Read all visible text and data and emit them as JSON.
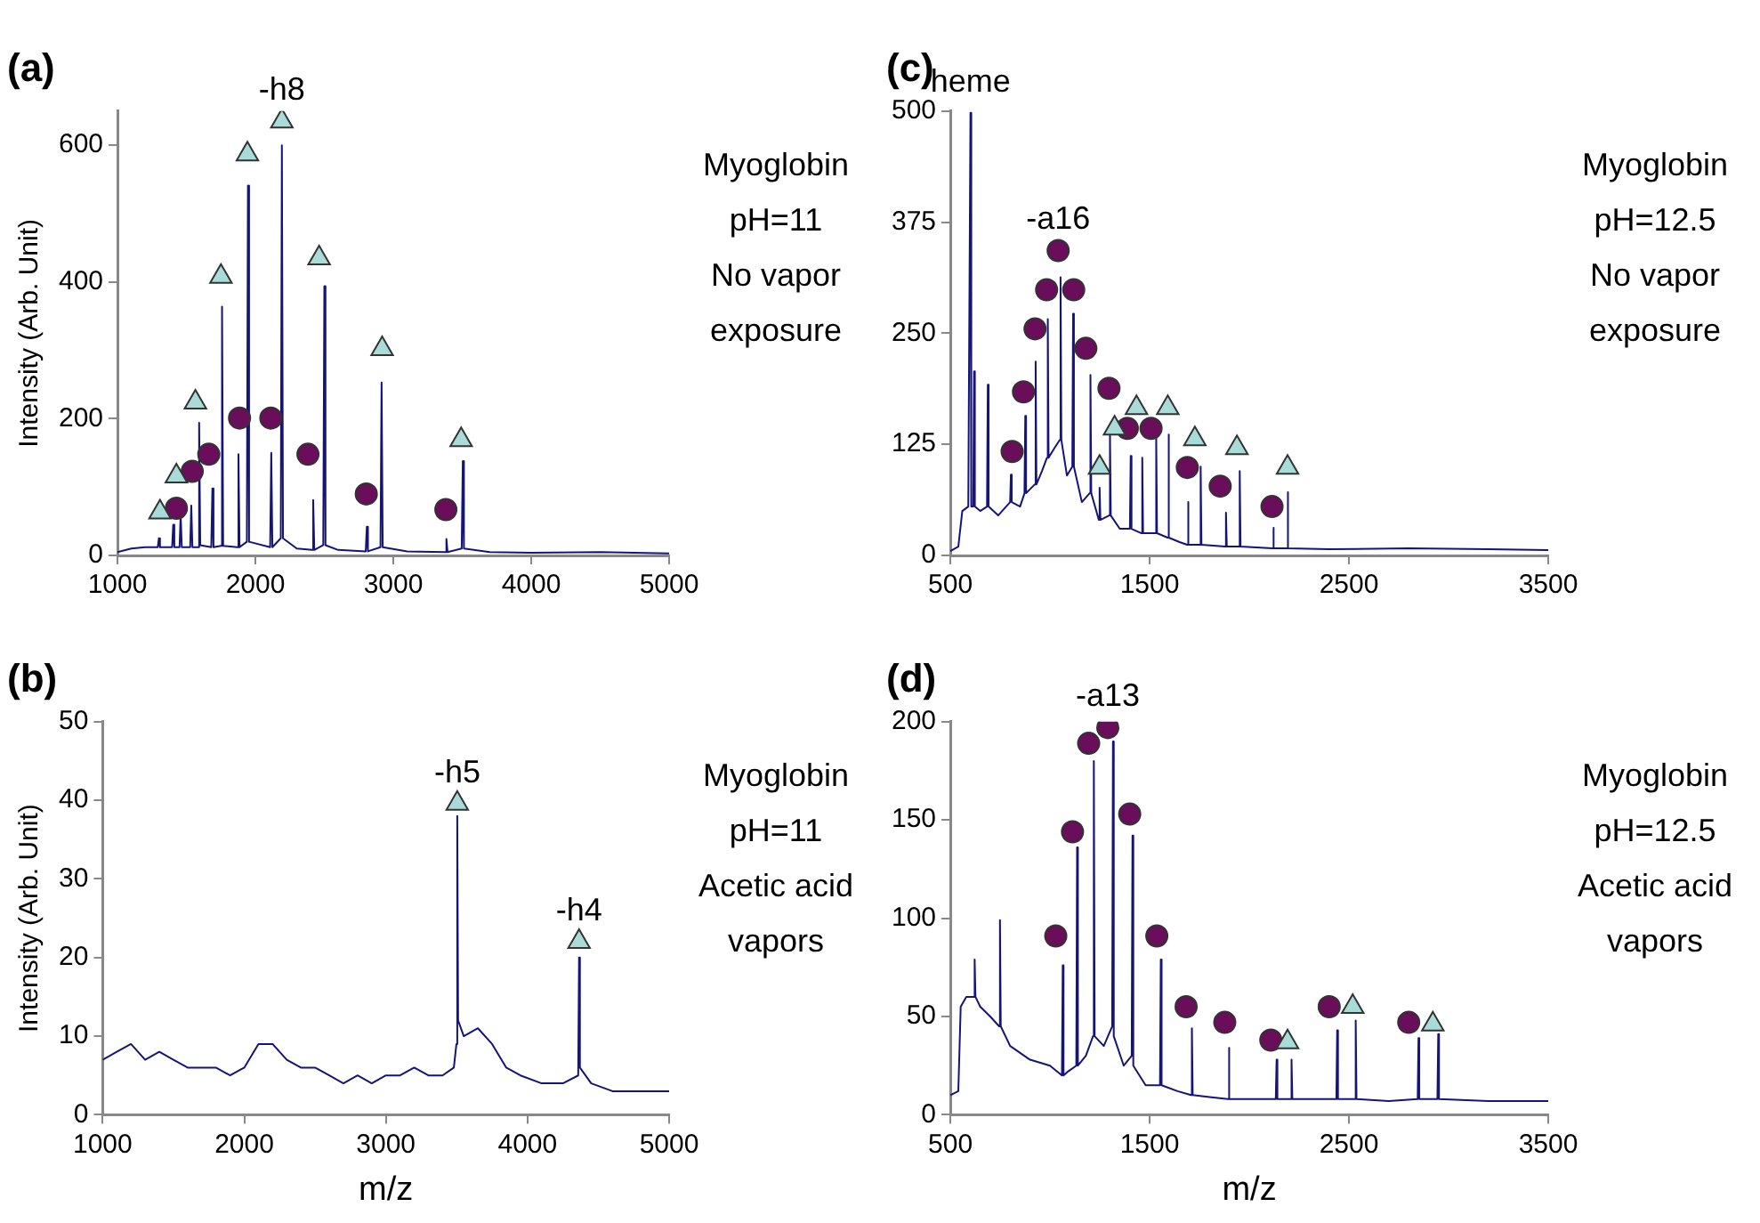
{
  "chart_data": [
    {
      "type": "line",
      "title": "(a)",
      "ylabel": "Intensity (Arb. Unit)",
      "xlim": [
        1000,
        5000
      ],
      "xticks": [
        1000,
        2000,
        3000,
        4000,
        5000
      ],
      "ylim": [
        0,
        650
      ],
      "yticks": [
        0,
        200,
        400,
        600
      ],
      "grid": false,
      "legend": false,
      "annotations": [
        "Myoglobin",
        "pH=11",
        "No vapor",
        "exposure",
        {
          "text": "-h8",
          "x": 2192,
          "y": 635
        }
      ],
      "series": [
        {
          "type": "line",
          "color": "#14147a",
          "marker": "none",
          "x": [
            1000,
            1100,
            1200,
            1292,
            1300,
            1308,
            1396,
            1404,
            1412,
            1450,
            1458,
            1466,
            1527,
            1535,
            1543,
            1584,
            1592,
            1600,
            1680,
            1688,
            1696,
            1750,
            1758,
            1766,
            1869,
            1877,
            1885,
            1938,
            1946,
            1954,
            2107,
            2115,
            2123,
            2184,
            2192,
            2200,
            2300,
            2411,
            2419,
            2427,
            2492,
            2500,
            2508,
            2600,
            2800,
            2808,
            2816,
            2907,
            2915,
            2923,
            3100,
            3377,
            3385,
            3393,
            3496,
            3504,
            3512,
            3700,
            4000,
            4500,
            5000
          ],
          "values": [
            5,
            10,
            12,
            12,
            25,
            12,
            12,
            45,
            12,
            12,
            60,
            12,
            12,
            73,
            12,
            12,
            194,
            15,
            12,
            98,
            12,
            14,
            364,
            14,
            12,
            148,
            12,
            20,
            541,
            20,
            12,
            150,
            12,
            25,
            600,
            25,
            10,
            8,
            81,
            8,
            15,
            394,
            15,
            8,
            6,
            42,
            6,
            12,
            253,
            12,
            6,
            5,
            24,
            5,
            10,
            138,
            10,
            5,
            4,
            5,
            3
          ]
        },
        {
          "type": "scatter",
          "color": "#a9dcd8",
          "marker": "triangle",
          "x": [
            1308,
            1427,
            1565,
            1750,
            1942,
            2192,
            2462,
            2919,
            3492
          ],
          "values": [
            63,
            116,
            224,
            408,
            587,
            635,
            435,
            302,
            169
          ]
        },
        {
          "type": "scatter",
          "color": "#6a0d5b",
          "marker": "circle",
          "x": [
            1427,
            1542,
            1662,
            1885,
            2112,
            2381,
            2804,
            3381
          ],
          "values": [
            69,
            123,
            148,
            201,
            201,
            148,
            90,
            67
          ]
        }
      ]
    },
    {
      "type": "line",
      "title": "(c)",
      "xlim": [
        500,
        3500
      ],
      "xticks": [
        500,
        1500,
        2500,
        3500
      ],
      "ylim": [
        0,
        500
      ],
      "yticks": [
        0,
        125,
        250,
        375,
        500
      ],
      "grid": false,
      "legend": false,
      "annotations": [
        "Myoglobin",
        "pH=12.5",
        "No vapor",
        "exposure",
        {
          "text": "heme",
          "x": 601,
          "y": 498
        },
        {
          "text": "-a16",
          "x": 1041,
          "y": 343
        }
      ],
      "series": [
        {
          "type": "line",
          "color": "#14147a",
          "marker": "none",
          "x": [
            500,
            540,
            560,
            590,
            597,
            601,
            605,
            615,
            619,
            623,
            650,
            684,
            688,
            692,
            740,
            800,
            804,
            808,
            850,
            872,
            876,
            880,
            924,
            928,
            932,
            960,
            985,
            989,
            993,
            1020,
            1049,
            1053,
            1057,
            1085,
            1112,
            1116,
            1120,
            1160,
            1199,
            1203,
            1207,
            1245,
            1249,
            1253,
            1297,
            1301,
            1305,
            1350,
            1401,
            1405,
            1409,
            1459,
            1463,
            1467,
            1529,
            1533,
            1537,
            1590,
            1594,
            1598,
            1650,
            1688,
            1692,
            1696,
            1752,
            1756,
            1760,
            1879,
            1883,
            1887,
            1948,
            1952,
            1956,
            2116,
            2120,
            2124,
            2188,
            2192,
            2196,
            2400,
            2800,
            3200,
            3500
          ],
          "values": [
            5,
            10,
            50,
            55,
            55,
            498,
            55,
            55,
            207,
            55,
            50,
            55,
            192,
            55,
            45,
            60,
            91,
            60,
            55,
            70,
            157,
            70,
            80,
            218,
            80,
            95,
            110,
            266,
            110,
            120,
            130,
            313,
            130,
            90,
            100,
            272,
            100,
            60,
            70,
            203,
            70,
            40,
            76,
            40,
            45,
            136,
            45,
            30,
            30,
            112,
            30,
            25,
            110,
            25,
            25,
            132,
            25,
            20,
            136,
            20,
            15,
            12,
            60,
            12,
            12,
            100,
            12,
            10,
            48,
            10,
            10,
            95,
            10,
            8,
            31,
            8,
            8,
            71,
            8,
            7,
            8,
            7,
            6
          ]
        },
        {
          "type": "scatter",
          "color": "#a9dcd8",
          "marker": "triangle",
          "x": [
            1249,
            1324,
            1434,
            1591,
            1727,
            1938,
            2192
          ],
          "values": [
            99,
            143,
            166,
            166,
            131,
            121,
            99
          ]
        },
        {
          "type": "scatter",
          "color": "#6a0d5b",
          "marker": "circle",
          "x": [
            810,
            867,
            925,
            983,
            1041,
            1119,
            1180,
            1296,
            1388,
            1507,
            1689,
            1854,
            2114
          ],
          "values": [
            117,
            184,
            255,
            299,
            343,
            299,
            233,
            188,
            143,
            143,
            99,
            78,
            55
          ]
        }
      ]
    },
    {
      "type": "line",
      "title": "(b)",
      "xlabel": "m/z",
      "ylabel": "Intensity (Arb. Unit)",
      "xlim": [
        1000,
        5000
      ],
      "xticks": [
        1000,
        2000,
        3000,
        4000,
        5000
      ],
      "ylim": [
        0,
        50
      ],
      "yticks": [
        0,
        10,
        20,
        30,
        40,
        50
      ],
      "grid": false,
      "legend": false,
      "annotations": [
        "Myoglobin",
        "pH=11",
        "Acetic acid",
        "vapors",
        {
          "text": "-h5",
          "x": 3504,
          "y": 39.6
        },
        {
          "text": "-h4",
          "x": 4364,
          "y": 22
        }
      ],
      "series": [
        {
          "type": "line",
          "color": "#14147a",
          "marker": "none",
          "x": [
            1000,
            1100,
            1200,
            1300,
            1400,
            1500,
            1600,
            1700,
            1800,
            1900,
            2000,
            2100,
            2200,
            2300,
            2400,
            2500,
            2600,
            2700,
            2800,
            2900,
            3000,
            3100,
            3200,
            3300,
            3400,
            3480,
            3498,
            3504,
            3510,
            3550,
            3650,
            3750,
            3850,
            3950,
            4100,
            4250,
            4358,
            4364,
            4370,
            4450,
            4600,
            4800,
            5000
          ],
          "values": [
            7,
            8,
            9,
            7,
            8,
            7,
            6,
            6,
            6,
            5,
            6,
            9,
            9,
            7,
            6,
            6,
            5,
            4,
            5,
            4,
            5,
            5,
            6,
            5,
            5,
            6,
            9,
            38,
            12,
            10,
            11,
            9,
            6,
            5,
            4,
            4,
            5,
            20,
            6,
            4,
            3,
            3,
            3
          ]
        },
        {
          "type": "scatter",
          "color": "#a9dcd8",
          "marker": "triangle",
          "x": [
            3504,
            4364
          ],
          "values": [
            39.6,
            22
          ]
        }
      ]
    },
    {
      "type": "line",
      "title": "(d)",
      "xlabel": "m/z",
      "xlim": [
        500,
        3500
      ],
      "xticks": [
        500,
        1500,
        2500,
        3500
      ],
      "ylim": [
        0,
        200
      ],
      "yticks": [
        0,
        50,
        100,
        150,
        200
      ],
      "grid": false,
      "legend": false,
      "annotations": [
        "Myoglobin",
        "pH=12.5",
        "Acetic acid",
        "vapors",
        {
          "text": "-a13",
          "x": 1290,
          "y": 197
        }
      ],
      "series": [
        {
          "type": "line",
          "color": "#14147a",
          "marker": "none",
          "x": [
            500,
            540,
            552,
            580,
            618,
            622,
            626,
            650,
            700,
            745,
            749,
            753,
            800,
            900,
            1000,
            1060,
            1064,
            1068,
            1090,
            1132,
            1136,
            1140,
            1180,
            1216,
            1220,
            1224,
            1270,
            1312,
            1316,
            1320,
            1370,
            1410,
            1414,
            1418,
            1480,
            1552,
            1556,
            1560,
            1640,
            1708,
            1712,
            1716,
            1800,
            1893,
            1897,
            1901,
            2000,
            2133,
            2137,
            2141,
            2208,
            2212,
            2216,
            2300,
            2437,
            2441,
            2445,
            2530,
            2534,
            2538,
            2700,
            2845,
            2849,
            2853,
            2944,
            2948,
            2952,
            3200,
            3500
          ],
          "values": [
            10,
            12,
            55,
            60,
            60,
            79,
            60,
            55,
            50,
            45,
            99,
            45,
            35,
            28,
            25,
            20,
            76,
            20,
            22,
            25,
            136,
            25,
            30,
            40,
            180,
            40,
            35,
            45,
            190,
            40,
            25,
            30,
            142,
            25,
            15,
            15,
            79,
            15,
            12,
            10,
            44,
            10,
            9,
            8,
            34,
            8,
            8,
            8,
            28,
            8,
            8,
            28,
            8,
            8,
            8,
            43,
            8,
            8,
            48,
            8,
            7,
            8,
            39,
            8,
            8,
            41,
            8,
            7,
            7
          ]
        },
        {
          "type": "scatter",
          "color": "#a9dcd8",
          "marker": "triangle",
          "x": [
            2192,
            2519,
            2921
          ],
          "values": [
            37,
            55,
            46
          ]
        },
        {
          "type": "scatter",
          "color": "#6a0d5b",
          "marker": "circle",
          "x": [
            1029,
            1113,
            1194,
            1290,
            1400,
            1536,
            1683,
            1877,
            2108,
            2401,
            2800
          ],
          "values": [
            91,
            144,
            189,
            197,
            153,
            91,
            55,
            47,
            38,
            55,
            47
          ]
        }
      ]
    }
  ]
}
